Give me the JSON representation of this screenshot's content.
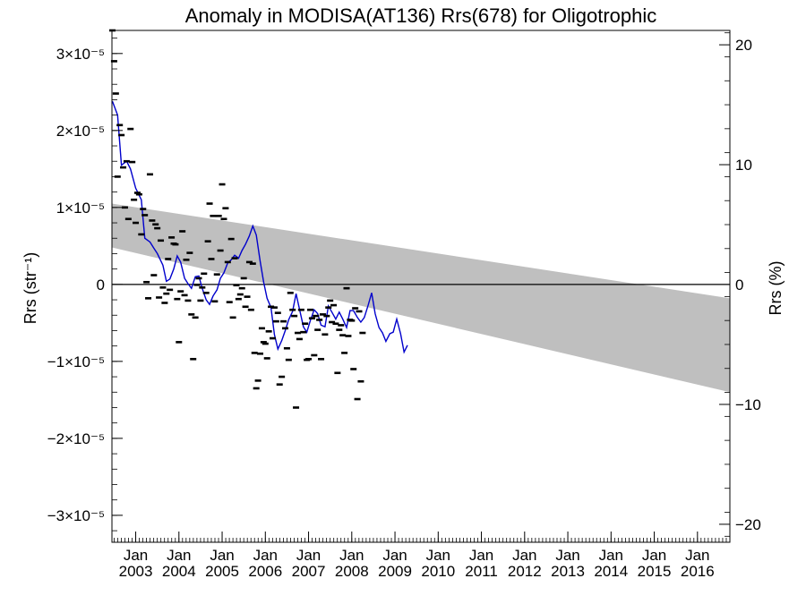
{
  "chart_data": {
    "type": "scatter",
    "title": "Anomaly in MODISA(AT136) Rrs(678) for Oligotrophic",
    "ylabel_left": "Rrs (str⁻¹)",
    "ylabel_right": "Rrs (%)",
    "xlim": [
      2002.45,
      2016.75
    ],
    "ylim": [
      -3.35e-05,
      3.3e-05
    ],
    "y2lim": [
      -21.5,
      21.2
    ],
    "left_ticks": [
      {
        "value": 3e-05,
        "label": "3×10⁻⁵"
      },
      {
        "value": 2e-05,
        "label": "2×10⁻⁵"
      },
      {
        "value": 1e-05,
        "label": "1×10⁻⁵"
      },
      {
        "value": 0,
        "label": "0"
      },
      {
        "value": -1e-05,
        "label": "−1×10⁻⁵"
      },
      {
        "value": -2e-05,
        "label": "−2×10⁻⁵"
      },
      {
        "value": -3e-05,
        "label": "−3×10⁻⁵"
      }
    ],
    "right_ticks": [
      {
        "value": 20,
        "label": "20"
      },
      {
        "value": 10,
        "label": "10"
      },
      {
        "value": 0,
        "label": "0"
      },
      {
        "value": -10,
        "label": "−10"
      },
      {
        "value": -20,
        "label": "−20"
      }
    ],
    "x_ticks": [
      {
        "value": 2003,
        "month": "Jan",
        "year": "2003"
      },
      {
        "value": 2004,
        "month": "Jan",
        "year": "2004"
      },
      {
        "value": 2005,
        "month": "Jan",
        "year": "2005"
      },
      {
        "value": 2006,
        "month": "Jan",
        "year": "2006"
      },
      {
        "value": 2007,
        "month": "Jan",
        "year": "2007"
      },
      {
        "value": 2008,
        "month": "Jan",
        "year": "2008"
      },
      {
        "value": 2009,
        "month": "Jan",
        "year": "2009"
      },
      {
        "value": 2010,
        "month": "Jan",
        "year": "2010"
      },
      {
        "value": 2011,
        "month": "Jan",
        "year": "2011"
      },
      {
        "value": 2012,
        "month": "Jan",
        "year": "2012"
      },
      {
        "value": 2013,
        "month": "Jan",
        "year": "2013"
      },
      {
        "value": 2014,
        "month": "Jan",
        "year": "2014"
      },
      {
        "value": 2015,
        "month": "Jan",
        "year": "2015"
      },
      {
        "value": 2016,
        "month": "Jan",
        "year": "2016"
      }
    ],
    "band": {
      "upper": [
        [
          2002.45,
          1.05e-05
        ],
        [
          2016.75,
          -1.8e-06
        ]
      ],
      "lower": [
        [
          2002.45,
          4.8e-06
        ],
        [
          2016.75,
          -1.4e-05
        ]
      ],
      "color": "#bfbfbf"
    },
    "zero_line": 0,
    "colors": {
      "smooth": "#0000cc",
      "points": "#000000"
    },
    "points": [
      [
        2002.46,
        3.3e-05
      ],
      [
        2002.5,
        2.9e-05
      ],
      [
        2002.54,
        2.48e-05
      ],
      [
        2002.58,
        1.4e-05
      ],
      [
        2002.63,
        2.07e-05
      ],
      [
        2002.67,
        1.94e-05
      ],
      [
        2002.71,
        1.52e-05
      ],
      [
        2002.75,
        1e-05
      ],
      [
        2002.79,
        1.6e-05
      ],
      [
        2002.83,
        8.5e-06
      ],
      [
        2002.88,
        2.02e-05
      ],
      [
        2002.92,
        1.59e-05
      ],
      [
        2002.96,
        1.1e-05
      ],
      [
        2003.0,
        8e-06
      ],
      [
        2003.04,
        1.19e-05
      ],
      [
        2003.08,
        1.17e-05
      ],
      [
        2003.13,
        6.5e-06
      ],
      [
        2003.17,
        9.8e-06
      ],
      [
        2003.21,
        9e-06
      ],
      [
        2003.25,
        3e-07
      ],
      [
        2003.29,
        -1.8e-06
      ],
      [
        2003.33,
        1.43e-05
      ],
      [
        2003.38,
        8.3e-06
      ],
      [
        2003.42,
        1.2e-06
      ],
      [
        2003.46,
        7.8e-06
      ],
      [
        2003.5,
        7.3e-06
      ],
      [
        2003.54,
        -1.7e-06
      ],
      [
        2003.58,
        5.7e-06
      ],
      [
        2003.63,
        -4e-07
      ],
      [
        2003.67,
        -2.4e-06
      ],
      [
        2003.71,
        -1.2e-06
      ],
      [
        2003.75,
        3.3e-06
      ],
      [
        2003.79,
        -7e-07
      ],
      [
        2003.83,
        6.1e-06
      ],
      [
        2003.88,
        5.3e-06
      ],
      [
        2003.92,
        5.2e-06
      ],
      [
        2003.96,
        -1.9e-06
      ],
      [
        2004.0,
        -7.5e-06
      ],
      [
        2004.04,
        -9e-07
      ],
      [
        2004.08,
        6.9e-06
      ],
      [
        2004.13,
        -1.4e-06
      ],
      [
        2004.17,
        3.2e-06
      ],
      [
        2004.21,
        -2.1e-06
      ],
      [
        2004.25,
        4.1e-06
      ],
      [
        2004.29,
        -3.9e-06
      ],
      [
        2004.33,
        -9.7e-06
      ],
      [
        2004.38,
        -4.3e-06
      ],
      [
        2004.42,
        -5e-08
      ],
      [
        2004.46,
        8e-07
      ],
      [
        2004.5,
        -2.1e-06
      ],
      [
        2004.54,
        -4e-07
      ],
      [
        2004.58,
        1.4e-06
      ],
      [
        2004.63,
        -1.1e-06
      ],
      [
        2004.67,
        5.6e-06
      ],
      [
        2004.71,
        1.05e-05
      ],
      [
        2004.75,
        3.3e-06
      ],
      [
        2004.79,
        8.9e-06
      ],
      [
        2004.83,
        -2.2e-06
      ],
      [
        2004.88,
        1.3e-06
      ],
      [
        2004.92,
        8.9e-06
      ],
      [
        2004.96,
        4.4e-06
      ],
      [
        2005.0,
        1.3e-05
      ],
      [
        2005.04,
        8.5e-06
      ],
      [
        2005.08,
        9.9e-06
      ],
      [
        2005.13,
        2.9e-06
      ],
      [
        2005.17,
        -2.3e-06
      ],
      [
        2005.21,
        5.9e-06
      ],
      [
        2005.25,
        -4.3e-06
      ],
      [
        2005.29,
        3.4e-06
      ],
      [
        2005.33,
        -1e-07
      ],
      [
        2005.38,
        -1.9e-06
      ],
      [
        2005.42,
        -1.3e-06
      ],
      [
        2005.46,
        -5e-07
      ],
      [
        2005.5,
        8e-07
      ],
      [
        2005.54,
        -2.9e-06
      ],
      [
        2005.58,
        -1.6e-06
      ],
      [
        2005.63,
        2.9e-06
      ],
      [
        2005.67,
        -3.3e-06
      ],
      [
        2005.71,
        2.7e-06
      ],
      [
        2005.75,
        -8.9e-06
      ],
      [
        2005.79,
        -1.35e-05
      ],
      [
        2005.83,
        -1.25e-05
      ],
      [
        2005.88,
        -9e-06
      ],
      [
        2005.92,
        -5.7e-06
      ],
      [
        2005.96,
        -7.5e-06
      ],
      [
        2006.0,
        -7.7e-06
      ],
      [
        2006.04,
        -9.6e-06
      ],
      [
        2006.08,
        -6.1e-06
      ],
      [
        2006.13,
        -2.9e-06
      ],
      [
        2006.17,
        -7e-06
      ],
      [
        2006.21,
        -3e-06
      ],
      [
        2006.25,
        -4.8e-06
      ],
      [
        2006.29,
        -3.7e-06
      ],
      [
        2006.33,
        -1.3e-05
      ],
      [
        2006.38,
        -1.2e-05
      ],
      [
        2006.42,
        -4.8e-06
      ],
      [
        2006.46,
        -5.7e-06
      ],
      [
        2006.5,
        -8.3e-06
      ],
      [
        2006.54,
        -9.8e-06
      ],
      [
        2006.58,
        -1.1e-06
      ],
      [
        2006.63,
        -3.3e-06
      ],
      [
        2006.67,
        -4.1e-06
      ],
      [
        2006.71,
        -1.6e-05
      ],
      [
        2006.75,
        -6.3e-06
      ],
      [
        2006.79,
        -7.1e-06
      ],
      [
        2006.83,
        -3.3e-06
      ],
      [
        2006.88,
        -6.2e-06
      ],
      [
        2006.92,
        -5.1e-06
      ],
      [
        2006.96,
        -9.8e-06
      ],
      [
        2007.0,
        -9.7e-06
      ],
      [
        2007.04,
        -3.3e-06
      ],
      [
        2007.08,
        -4.4e-06
      ],
      [
        2007.13,
        -9.2e-06
      ],
      [
        2007.17,
        -4.1e-06
      ],
      [
        2007.21,
        -5.9e-06
      ],
      [
        2007.25,
        -4.6e-06
      ],
      [
        2007.29,
        -9.7e-06
      ],
      [
        2007.33,
        -3.9e-06
      ],
      [
        2007.38,
        -6.5e-06
      ],
      [
        2007.42,
        -4.1e-06
      ],
      [
        2007.46,
        -3e-06
      ],
      [
        2007.5,
        -2.1e-06
      ],
      [
        2007.54,
        -4.9e-06
      ],
      [
        2007.58,
        -2.7e-06
      ],
      [
        2007.63,
        -5.1e-06
      ],
      [
        2007.67,
        -1.15e-05
      ],
      [
        2007.71,
        -5.9e-06
      ],
      [
        2007.75,
        -5.3e-06
      ],
      [
        2007.79,
        -6.6e-06
      ],
      [
        2007.83,
        -8.9e-06
      ],
      [
        2007.88,
        -5e-07
      ],
      [
        2007.92,
        -6.7e-06
      ],
      [
        2007.96,
        -4.6e-06
      ],
      [
        2008.0,
        -4.7e-06
      ],
      [
        2008.04,
        -1.1e-05
      ],
      [
        2008.08,
        -3.1e-06
      ],
      [
        2008.13,
        -1.49e-05
      ],
      [
        2008.17,
        -3.5e-06
      ],
      [
        2008.21,
        -1.26e-05
      ],
      [
        2008.25,
        -6.3e-06
      ]
    ],
    "smooth": [
      [
        2002.46,
        2.38e-05
      ],
      [
        2002.58,
        2.2e-05
      ],
      [
        2002.67,
        1.55e-05
      ],
      [
        2002.79,
        1.6e-05
      ],
      [
        2002.88,
        1.5e-05
      ],
      [
        2003.0,
        1.25e-05
      ],
      [
        2003.13,
        1.1e-05
      ],
      [
        2003.21,
        6e-06
      ],
      [
        2003.33,
        5.5e-06
      ],
      [
        2003.42,
        4.7e-06
      ],
      [
        2003.5,
        4e-06
      ],
      [
        2003.63,
        2.5e-06
      ],
      [
        2003.71,
        4e-07
      ],
      [
        2003.79,
        7e-07
      ],
      [
        2003.88,
        2e-06
      ],
      [
        2003.96,
        3.7e-06
      ],
      [
        2004.04,
        2.9e-06
      ],
      [
        2004.13,
        8e-07
      ],
      [
        2004.21,
        1e-07
      ],
      [
        2004.29,
        -5e-07
      ],
      [
        2004.38,
        1e-06
      ],
      [
        2004.46,
        1.1e-06
      ],
      [
        2004.54,
        -5e-07
      ],
      [
        2004.63,
        -2e-06
      ],
      [
        2004.71,
        -2.6e-06
      ],
      [
        2004.79,
        -1.5e-06
      ],
      [
        2004.88,
        -7e-07
      ],
      [
        2004.96,
        8e-07
      ],
      [
        2005.04,
        1.5e-06
      ],
      [
        2005.13,
        2.8e-06
      ],
      [
        2005.21,
        3.2e-06
      ],
      [
        2005.29,
        3.8e-06
      ],
      [
        2005.38,
        3.4e-06
      ],
      [
        2005.46,
        4.4e-06
      ],
      [
        2005.54,
        5.2e-06
      ],
      [
        2005.63,
        6.3e-06
      ],
      [
        2005.71,
        7.6e-06
      ],
      [
        2005.79,
        6.4e-06
      ],
      [
        2005.88,
        3e-06
      ],
      [
        2005.96,
        3e-07
      ],
      [
        2006.04,
        -1.8e-06
      ],
      [
        2006.13,
        -3e-06
      ],
      [
        2006.21,
        -6.5e-06
      ],
      [
        2006.29,
        -8.4e-06
      ],
      [
        2006.38,
        -7.3e-06
      ],
      [
        2006.46,
        -6e-06
      ],
      [
        2006.54,
        -4.6e-06
      ],
      [
        2006.63,
        -3.5e-06
      ],
      [
        2006.71,
        -1.2e-06
      ],
      [
        2006.79,
        -3.2e-06
      ],
      [
        2006.88,
        -5.5e-06
      ],
      [
        2006.96,
        -6.2e-06
      ],
      [
        2007.04,
        -4.7e-06
      ],
      [
        2007.13,
        -3.3e-06
      ],
      [
        2007.21,
        -3.8e-06
      ],
      [
        2007.29,
        -5.3e-06
      ],
      [
        2007.38,
        -5.5e-06
      ],
      [
        2007.46,
        -2.8e-06
      ],
      [
        2007.54,
        -3.6e-06
      ],
      [
        2007.63,
        -4.5e-06
      ],
      [
        2007.71,
        -3.6e-06
      ],
      [
        2007.79,
        -4.5e-06
      ],
      [
        2007.88,
        -5.6e-06
      ],
      [
        2007.96,
        -3.4e-06
      ],
      [
        2008.04,
        -3.4e-06
      ],
      [
        2008.13,
        -4.3e-06
      ],
      [
        2008.21,
        -4.9e-06
      ],
      [
        2008.29,
        -4.3e-06
      ],
      [
        2008.38,
        -2.7e-06
      ],
      [
        2008.46,
        -1.1e-06
      ],
      [
        2008.54,
        -3.8e-06
      ],
      [
        2008.63,
        -5.6e-06
      ],
      [
        2008.71,
        -6.3e-06
      ],
      [
        2008.79,
        -7.4e-06
      ],
      [
        2008.88,
        -6.4e-06
      ],
      [
        2008.96,
        -6.2e-06
      ],
      [
        2009.04,
        -4.5e-06
      ],
      [
        2009.13,
        -6.4e-06
      ],
      [
        2009.21,
        -8.8e-06
      ],
      [
        2009.29,
        -7.9e-06
      ]
    ]
  }
}
